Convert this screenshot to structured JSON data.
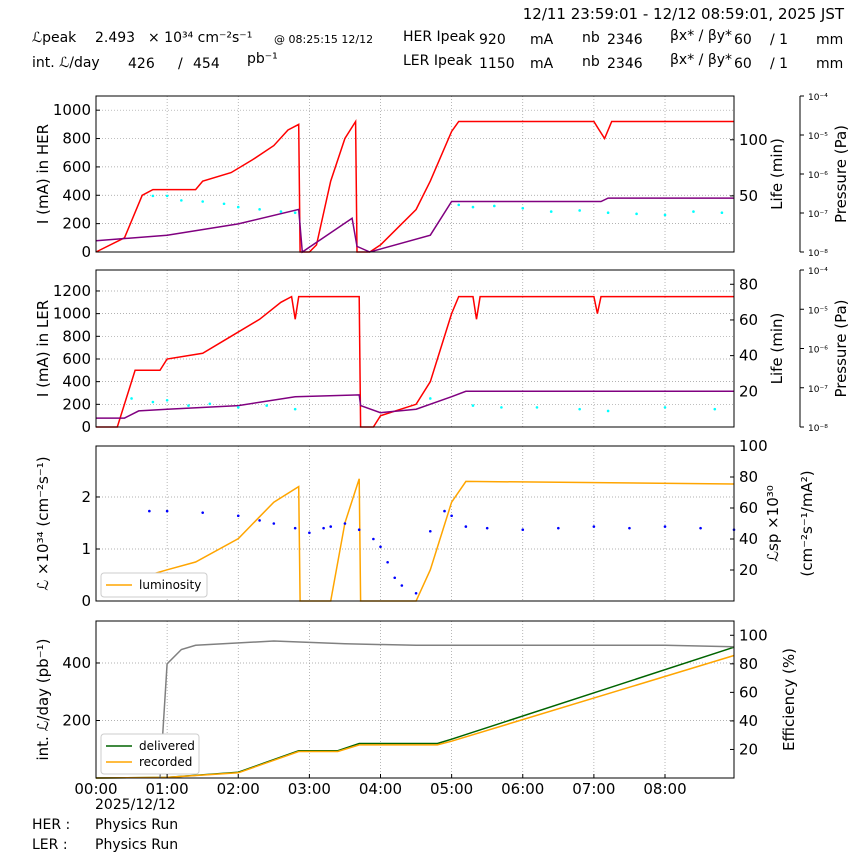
{
  "header": {
    "range": "12/11 23:59:01 - 12/12 08:59:01, 2025 JST",
    "lpeak_label": "ℒpeak",
    "lpeak_value": "2.493",
    "lpeak_unit": "× 10³⁴ cm⁻²s⁻¹",
    "lpeak_time": "@ 08:25:15 12/12",
    "intl_label": "int. ℒ/day",
    "intl_value": "426",
    "intl_slash": "/",
    "intl_total": "454",
    "intl_unit": "pb⁻¹",
    "her": {
      "label": "HER Ipeak",
      "value": "920",
      "unit": "mA",
      "nb_label": "nb",
      "nb": "2346",
      "beta_label": "βx* / βy*",
      "bx": "60",
      "by": "/ 1",
      "bunit": "mm"
    },
    "ler": {
      "label": "LER Ipeak",
      "value": "1150",
      "unit": "mA",
      "nb_label": "nb",
      "nb": "2346",
      "beta_label": "βx* / βy*",
      "bx": "60",
      "by": "/ 1",
      "bunit": "mm"
    }
  },
  "footer": {
    "date": "2025/12/12",
    "her_label": "HER :",
    "her_mode": "Physics Run",
    "ler_label": "LER :",
    "ler_mode": "Physics Run"
  },
  "colors": {
    "current": "#ff0000",
    "life_purple": "#800080",
    "life_cyan": "#00ffff",
    "luminosity": "#ffa500",
    "specific": "#0000ff",
    "delivered": "#006400",
    "recorded": "#ffa500",
    "efficiency": "#808080"
  },
  "chart_data": [
    {
      "type": "line",
      "ylabel": "I (mA) in HER",
      "ylabel_right": "Life (min)",
      "ylabel_right2": "Pressure (Pa)",
      "ylim": [
        0,
        1100
      ],
      "ylim_right": [
        0,
        139
      ],
      "yticks": [
        0,
        200,
        400,
        600,
        800,
        1000
      ],
      "yticks_right": [
        50,
        100
      ],
      "pressure_ticks": [
        "10⁻⁸",
        "10⁻⁷",
        "10⁻⁶",
        "10⁻⁵",
        "10⁻⁴"
      ],
      "series": [
        {
          "axis": "left",
          "color": "#ff0000",
          "x": [
            0,
            0.4,
            0.65,
            0.8,
            1.4,
            1.5,
            1.9,
            2.2,
            2.5,
            2.7,
            2.85,
            2.87,
            3.0,
            3.1,
            3.3,
            3.5,
            3.65,
            3.67,
            3.85,
            4.0,
            4.5,
            4.7,
            5.0,
            5.1,
            7.0,
            7.05,
            7.15,
            7.25,
            8.97
          ],
          "y": [
            0,
            100,
            400,
            440,
            440,
            500,
            560,
            650,
            750,
            860,
            900,
            0,
            0,
            50,
            500,
            800,
            920,
            0,
            0,
            50,
            300,
            500,
            850,
            920,
            920,
            880,
            800,
            920,
            920
          ]
        },
        {
          "axis": "right",
          "color": "#800080",
          "x": [
            0,
            1,
            2,
            2.85,
            2.9,
            3.6,
            3.67,
            3.85,
            4.7,
            5.0,
            7.1,
            7.2,
            8.97
          ],
          "y": [
            10,
            15,
            25,
            38,
            0,
            30,
            5,
            0,
            15,
            45,
            45,
            48,
            48
          ]
        },
        {
          "axis": "right",
          "color": "#00ffff",
          "scatter": true,
          "x": [
            0.8,
            1.0,
            1.2,
            1.5,
            1.8,
            2.0,
            2.3,
            2.6,
            2.8,
            5.1,
            5.3,
            5.6,
            6.0,
            6.4,
            6.8,
            7.2,
            7.6,
            8.0,
            8.4,
            8.8
          ],
          "y": [
            50,
            50,
            46,
            45,
            43,
            40,
            38,
            36,
            35,
            42,
            40,
            41,
            39,
            36,
            37,
            35,
            34,
            33,
            36,
            35
          ]
        }
      ]
    },
    {
      "type": "line",
      "ylabel": "I (mA) in LER",
      "ylabel_right": "Life (min)",
      "ylabel_right2": "Pressure (Pa)",
      "ylim": [
        0,
        1385
      ],
      "ylim_right": [
        0,
        88
      ],
      "yticks": [
        0,
        200,
        400,
        600,
        800,
        1000,
        1200
      ],
      "yticks_right": [
        20,
        40,
        60,
        80
      ],
      "pressure_ticks": [
        "10⁻⁸",
        "10⁻⁷",
        "10⁻⁶",
        "10⁻⁵",
        "10⁻⁴"
      ],
      "series": [
        {
          "axis": "left",
          "color": "#ff0000",
          "x": [
            0,
            0.3,
            0.55,
            0.9,
            1.0,
            1.5,
            1.9,
            2.3,
            2.6,
            2.75,
            2.8,
            2.85,
            3.7,
            3.72,
            3.9,
            4.0,
            4.5,
            4.7,
            4.8,
            5.0,
            5.1,
            5.3,
            5.35,
            5.4,
            7.0,
            7.05,
            7.1,
            8.97
          ],
          "y": [
            0,
            0,
            500,
            500,
            600,
            650,
            800,
            950,
            1100,
            1150,
            950,
            1150,
            1150,
            0,
            0,
            100,
            200,
            400,
            600,
            1000,
            1150,
            1150,
            950,
            1150,
            1150,
            1000,
            1150,
            1150
          ]
        },
        {
          "axis": "right",
          "color": "#800080",
          "x": [
            0,
            0.4,
            0.6,
            1.0,
            2,
            2.8,
            3.7,
            3.72,
            4.0,
            4.5,
            5.0,
            5.2,
            8.97
          ],
          "y": [
            5,
            5,
            9,
            10,
            12,
            17,
            18,
            12,
            8,
            10,
            17,
            20,
            20
          ]
        },
        {
          "axis": "right",
          "color": "#00ffff",
          "scatter": true,
          "x": [
            0.5,
            0.8,
            1.0,
            1.3,
            1.6,
            2.0,
            2.4,
            2.8,
            4.7,
            5.3,
            5.7,
            6.2,
            6.8,
            7.2,
            8.0,
            8.7
          ],
          "y": [
            16,
            14,
            15,
            12,
            13,
            11,
            12,
            10,
            16,
            12,
            11,
            11,
            10,
            9,
            11,
            10
          ]
        }
      ]
    },
    {
      "type": "line",
      "ylabel": "ℒ ×10³⁴ (cm⁻²s⁻¹)",
      "ylabel_right": "ℒsp ×10³⁰",
      "ylabel_right2": "(cm⁻²s⁻¹/mA²)",
      "ylim": [
        0,
        2.98
      ],
      "ylim_right": [
        0,
        100
      ],
      "yticks": [
        0,
        1,
        2
      ],
      "yticks_right": [
        20,
        40,
        60,
        80,
        100
      ],
      "legend": [
        "luminosity"
      ],
      "legend_position": "lower-left",
      "series": [
        {
          "name": "luminosity",
          "axis": "left",
          "color": "#ffa500",
          "x": [
            0.75,
            1.0,
            1.4,
            2.0,
            2.5,
            2.85,
            2.87,
            3.3,
            3.5,
            3.7,
            3.72,
            4.5,
            4.7,
            5.0,
            5.2,
            8.97
          ],
          "y": [
            0.5,
            0.6,
            0.75,
            1.2,
            1.9,
            2.2,
            0,
            0,
            1.5,
            2.35,
            0,
            0,
            0.6,
            1.9,
            2.3,
            2.25
          ]
        },
        {
          "axis": "right",
          "color": "#0000ff",
          "scatter": true,
          "x": [
            0.75,
            1.0,
            1.5,
            2.0,
            2.3,
            2.5,
            2.8,
            3.0,
            3.2,
            3.3,
            3.5,
            3.7,
            3.9,
            4.0,
            4.1,
            4.2,
            4.3,
            4.5,
            4.7,
            4.9,
            5.0,
            5.2,
            5.5,
            6.0,
            6.5,
            7.0,
            7.5,
            8.0,
            8.5,
            8.97
          ],
          "y": [
            58,
            58,
            57,
            55,
            52,
            50,
            47,
            44,
            47,
            48,
            50,
            46,
            40,
            35,
            25,
            15,
            10,
            5,
            45,
            58,
            55,
            48,
            47,
            46,
            47,
            48,
            47,
            48,
            47,
            46
          ]
        }
      ]
    },
    {
      "type": "line",
      "ylabel": "int. ℒ/day (pb⁻¹)",
      "ylabel_right": "Efficiency (%)",
      "ylim": [
        0,
        546
      ],
      "ylim_right": [
        0,
        110
      ],
      "yticks": [
        200,
        400
      ],
      "yticks_right": [
        20,
        40,
        60,
        80,
        100
      ],
      "legend": [
        "delivered",
        "recorded"
      ],
      "legend_position": "lower-left",
      "xticks": [
        "00:00",
        "01:00",
        "02:00",
        "03:00",
        "04:00",
        "05:00",
        "06:00",
        "07:00",
        "08:00"
      ],
      "xlim": [
        0,
        8.97
      ],
      "series": [
        {
          "name": "delivered",
          "axis": "left",
          "color": "#006400",
          "x": [
            0,
            1,
            2,
            2.85,
            3.4,
            3.7,
            4.8,
            5.0,
            8.97
          ],
          "y": [
            0,
            2,
            20,
            95,
            95,
            120,
            120,
            135,
            455
          ]
        },
        {
          "name": "recorded",
          "axis": "left",
          "color": "#ffa500",
          "x": [
            0,
            1,
            2,
            2.85,
            3.4,
            3.7,
            4.8,
            5.0,
            8.97
          ],
          "y": [
            0,
            2,
            18,
            92,
            92,
            115,
            115,
            128,
            426
          ]
        },
        {
          "axis": "right",
          "color": "#808080",
          "x": [
            0.9,
            1.0,
            1.2,
            1.4,
            2.5,
            3.5,
            4.5,
            8.0,
            8.97
          ],
          "y": [
            0,
            80,
            90,
            93,
            96,
            94,
            93,
            93,
            92
          ]
        }
      ]
    }
  ]
}
